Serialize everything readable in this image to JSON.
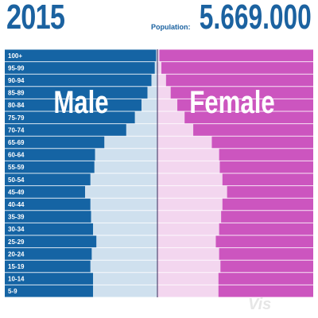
{
  "header": {
    "year": "2015",
    "population_label": "Population:",
    "population_value": "5.669.000"
  },
  "watermark": "Vis",
  "colors": {
    "male_bg": "#1564a4",
    "female_bg": "#cc55bf",
    "male_bar": "#cfe0ee",
    "female_bar": "#f3d6ef",
    "title_blue": "#1b62a0",
    "grid_line": "#ffffff"
  },
  "chart_data": {
    "type": "bar",
    "orientation": "horizontal",
    "layout": "population-pyramid",
    "title": "",
    "xlabel": "",
    "ylabel": "",
    "xlim": [
      -2.3,
      2.3
    ],
    "categories": [
      "100+",
      "95-99",
      "90-94",
      "85-89",
      "80-84",
      "75-79",
      "70-74",
      "65-69",
      "60-64",
      "55-59",
      "50-54",
      "45-49",
      "40-44",
      "35-39",
      "30-34",
      "25-29",
      "20-24",
      "15-19",
      "10-14",
      "5-9"
    ],
    "series": [
      {
        "name": "Male",
        "values": [
          0.02,
          0.04,
          0.09,
          0.15,
          0.24,
          0.34,
          0.47,
          0.8,
          0.94,
          0.95,
          1.01,
          1.09,
          1.01,
          1.0,
          0.97,
          0.92,
          0.99,
          1.01,
          0.97,
          0.97
        ]
      },
      {
        "name": "Female",
        "values": [
          0.03,
          0.06,
          0.13,
          0.2,
          0.3,
          0.41,
          0.54,
          0.82,
          0.93,
          0.94,
          0.98,
          1.05,
          0.98,
          0.96,
          0.93,
          0.88,
          0.93,
          0.95,
          0.92,
          0.92
        ]
      }
    ]
  }
}
